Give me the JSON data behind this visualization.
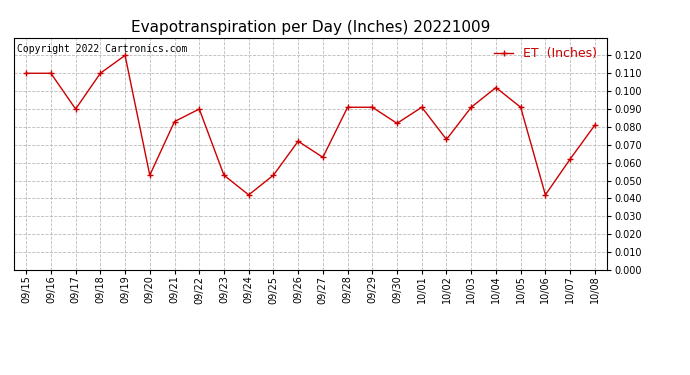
{
  "title": "Evapotranspiration per Day (Inches) 20221009",
  "copyright": "Copyright 2022 Cartronics.com",
  "legend_label": "ET  (Inches)",
  "x_labels": [
    "09/15",
    "09/16",
    "09/17",
    "09/18",
    "09/19",
    "09/20",
    "09/21",
    "09/22",
    "09/23",
    "09/24",
    "09/25",
    "09/26",
    "09/27",
    "09/28",
    "09/29",
    "09/30",
    "10/01",
    "10/02",
    "10/03",
    "10/04",
    "10/05",
    "10/06",
    "10/07",
    "10/08"
  ],
  "et_values": [
    0.11,
    0.11,
    0.09,
    0.11,
    0.12,
    0.053,
    0.083,
    0.09,
    0.053,
    0.042,
    0.053,
    0.072,
    0.063,
    0.091,
    0.091,
    0.082,
    0.091,
    0.073,
    0.091,
    0.102,
    0.091,
    0.042,
    0.062,
    0.081
  ],
  "line_color": "#cc0000",
  "marker": "+",
  "markersize": 5,
  "linewidth": 1.0,
  "ylim": [
    0.0,
    0.13
  ],
  "yticks": [
    0.0,
    0.01,
    0.02,
    0.03,
    0.04,
    0.05,
    0.06,
    0.07,
    0.08,
    0.09,
    0.1,
    0.11,
    0.12
  ],
  "background_color": "#ffffff",
  "grid_color": "#bbbbbb",
  "title_fontsize": 11,
  "tick_fontsize": 7,
  "legend_fontsize": 9,
  "copyright_fontsize": 7
}
